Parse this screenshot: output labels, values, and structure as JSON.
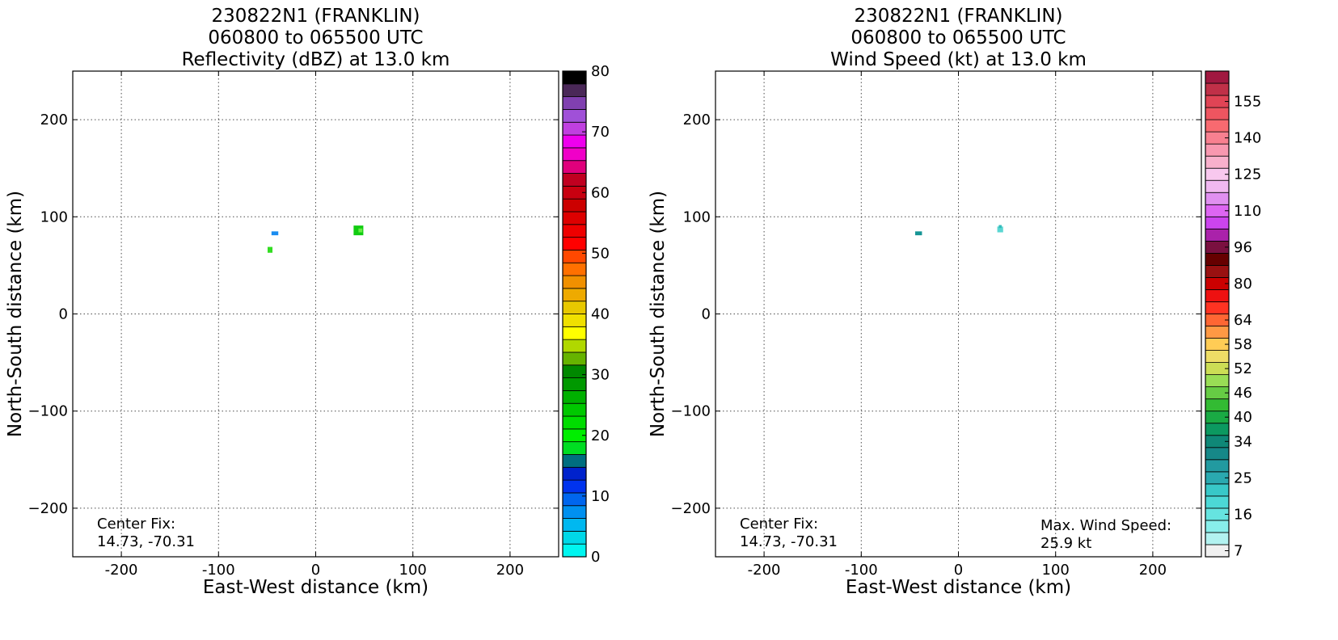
{
  "chart_data": [
    {
      "type": "heatmap",
      "title_lines": [
        "230822N1 (FRANKLIN)",
        "060800 to 065500 UTC",
        "Reflectivity (dBZ) at 13.0 km"
      ],
      "xlabel": "East-West distance (km)",
      "ylabel": "North-South distance (km)",
      "xlim": [
        -250,
        250
      ],
      "ylim": [
        -250,
        250
      ],
      "xticks": [
        -200,
        -100,
        0,
        100,
        200
      ],
      "yticks": [
        -200,
        -100,
        0,
        100,
        200
      ],
      "grid": true,
      "annotation_left": [
        "Center Fix:",
        "14.73, -70.31"
      ],
      "annotation_right": [],
      "cells": [
        {
          "x": -42,
          "y": 83,
          "w": 7,
          "h": 4,
          "color": "#1a8cf0"
        },
        {
          "x": -47,
          "y": 66,
          "w": 5,
          "h": 6,
          "color": "#33dd22"
        },
        {
          "x": 44,
          "y": 86,
          "w": 10,
          "h": 10,
          "color": "#11cc11"
        },
        {
          "x": 46,
          "y": 86,
          "w": 4,
          "h": 4,
          "color": "#66ee44"
        }
      ],
      "colorbar": {
        "vmin": 0,
        "vmax": 80,
        "labels": [
          "0",
          "10",
          "20",
          "30",
          "40",
          "50",
          "60",
          "70",
          "80"
        ],
        "colors": [
          "#00f5f0",
          "#00d8e8",
          "#00b8f0",
          "#0090f0",
          "#0066ee",
          "#0033ee",
          "#0022cc",
          "#006e80",
          "#00dd22",
          "#00ee00",
          "#00dd00",
          "#00c800",
          "#00b000",
          "#009900",
          "#008800",
          "#66b300",
          "#b0d800",
          "#ffff00",
          "#f0e000",
          "#e8c800",
          "#eeaa00",
          "#f09000",
          "#ff7000",
          "#ff4800",
          "#ff0000",
          "#ee0000",
          "#dd0000",
          "#cc0000",
          "#c80010",
          "#c00020",
          "#e0007c",
          "#f000c8",
          "#ee00ee",
          "#c040e0",
          "#a050d8",
          "#8040b0",
          "#4a2858",
          "#000000"
        ]
      }
    },
    {
      "type": "heatmap",
      "title_lines": [
        "230822N1 (FRANKLIN)",
        "060800 to 065500 UTC",
        "Wind Speed (kt) at 13.0 km"
      ],
      "xlabel": "East-West distance (km)",
      "ylabel": "North-South distance (km)",
      "xlim": [
        -250,
        250
      ],
      "ylim": [
        -250,
        250
      ],
      "xticks": [
        -200,
        -100,
        0,
        100,
        200
      ],
      "yticks": [
        -200,
        -100,
        0,
        100,
        200
      ],
      "grid": true,
      "annotation_left": [
        "Center Fix:",
        "14.73, -70.31"
      ],
      "annotation_right": [
        "Max. Wind Speed:",
        "25.9 kt"
      ],
      "cells": [
        {
          "x": -41,
          "y": 83,
          "w": 7,
          "h": 4,
          "color": "#169595"
        },
        {
          "x": 43,
          "y": 87,
          "w": 6,
          "h": 6,
          "color": "#5ad6d2"
        },
        {
          "x": 43,
          "y": 90,
          "w": 3,
          "h": 3,
          "color": "#33bbbb"
        }
      ],
      "colorbar": {
        "vmin": 0,
        "vmax": 40,
        "labels": [
          "7",
          "16",
          "25",
          "34",
          "40",
          "46",
          "52",
          "58",
          "64",
          "80",
          "96",
          "110",
          "125",
          "140",
          "155"
        ],
        "label_positions": [
          0,
          3,
          6,
          9,
          11,
          13,
          15,
          17,
          19,
          22,
          25,
          28,
          31,
          34,
          37
        ],
        "colors": [
          "#f0f0f0",
          "#b2f2f0",
          "#88eeea",
          "#66e4e0",
          "#4cd8d6",
          "#38c8c8",
          "#2aa9b0",
          "#229aa0",
          "#168888",
          "#0f8877",
          "#0c9960",
          "#1aaa44",
          "#33bb33",
          "#66cc44",
          "#99dd55",
          "#ccdd55",
          "#eedd66",
          "#ffcc55",
          "#ff9944",
          "#ff6633",
          "#ff3322",
          "#ee1111",
          "#cc0000",
          "#991111",
          "#660000",
          "#7a1040",
          "#aa22aa",
          "#cc44ee",
          "#dd66f2",
          "#e090f0",
          "#f0b8f0",
          "#f8c8ee",
          "#f8b0cc",
          "#f898b0",
          "#f88090",
          "#f86a70",
          "#ee5560",
          "#e04455",
          "#c03048",
          "#a01840"
        ]
      }
    }
  ]
}
